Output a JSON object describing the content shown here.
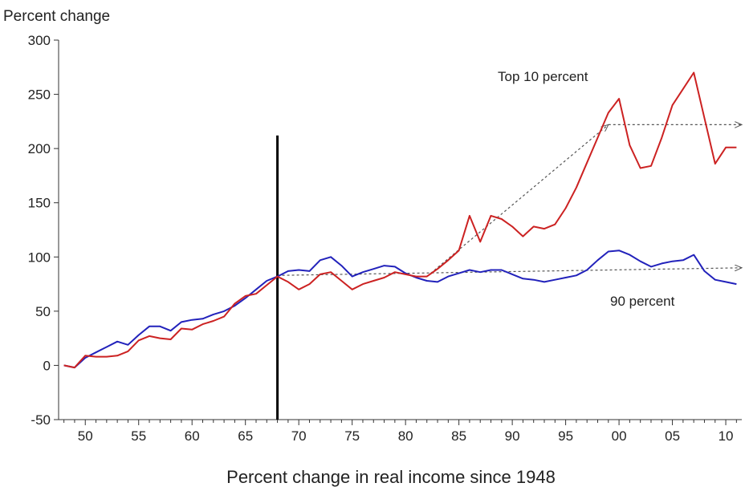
{
  "chart_data": {
    "type": "line",
    "ylabel": "Percent change",
    "xlabel": "Percent change in real income since 1948",
    "ylim": [
      -50,
      300
    ],
    "xlim": [
      1947.5,
      2011.5
    ],
    "y_ticks": [
      -50,
      0,
      50,
      100,
      150,
      200,
      250,
      300
    ],
    "x_ticks": [
      {
        "x": 1950,
        "label": "50"
      },
      {
        "x": 1955,
        "label": "55"
      },
      {
        "x": 1960,
        "label": "60"
      },
      {
        "x": 1965,
        "label": "65"
      },
      {
        "x": 1970,
        "label": "70"
      },
      {
        "x": 1975,
        "label": "75"
      },
      {
        "x": 1980,
        "label": "80"
      },
      {
        "x": 1985,
        "label": "85"
      },
      {
        "x": 1990,
        "label": "90"
      },
      {
        "x": 1995,
        "label": "95"
      },
      {
        "x": 2000,
        "label": "00"
      },
      {
        "x": 2005,
        "label": "05"
      },
      {
        "x": 2010,
        "label": "10"
      }
    ],
    "grid": false,
    "colors": {
      "top10": "#cc2222",
      "p90": "#2222bb",
      "vline": "#000000",
      "arrows": "#555555"
    },
    "x": [
      1948,
      1949,
      1950,
      1951,
      1952,
      1953,
      1954,
      1955,
      1956,
      1957,
      1958,
      1959,
      1960,
      1961,
      1962,
      1963,
      1964,
      1965,
      1966,
      1967,
      1968,
      1969,
      1970,
      1971,
      1972,
      1973,
      1974,
      1975,
      1976,
      1977,
      1978,
      1979,
      1980,
      1981,
      1982,
      1983,
      1984,
      1985,
      1986,
      1987,
      1988,
      1989,
      1990,
      1991,
      1992,
      1993,
      1994,
      1995,
      1996,
      1997,
      1998,
      1999,
      2000,
      2001,
      2002,
      2003,
      2004,
      2005,
      2006,
      2007,
      2008,
      2009,
      2010,
      2011
    ],
    "series": [
      {
        "name": "Top 10 percent",
        "color": "#cc2222",
        "values": [
          0,
          -2,
          9,
          8,
          8,
          9,
          13,
          23,
          27,
          25,
          24,
          34,
          33,
          38,
          41,
          45,
          57,
          64,
          66,
          74,
          82,
          77,
          70,
          75,
          84,
          86,
          78,
          70,
          75,
          78,
          81,
          86,
          84,
          82,
          82,
          89,
          97,
          106,
          138,
          114,
          138,
          135,
          128,
          119,
          128,
          126,
          130,
          145,
          164,
          187,
          210,
          233,
          246,
          203,
          182,
          184,
          210,
          240,
          255,
          270,
          228,
          186,
          201,
          201
        ]
      },
      {
        "name": "90 percent",
        "color": "#2222bb",
        "values": [
          0,
          -2,
          7,
          12,
          17,
          22,
          19,
          28,
          36,
          36,
          32,
          40,
          42,
          43,
          47,
          50,
          55,
          62,
          70,
          78,
          82,
          87,
          88,
          87,
          97,
          100,
          92,
          82,
          86,
          89,
          92,
          91,
          85,
          81,
          78,
          77,
          82,
          85,
          88,
          86,
          88,
          88,
          84,
          80,
          79,
          77,
          79,
          81,
          83,
          88,
          97,
          105,
          106,
          102,
          96,
          91,
          94,
          96,
          97,
          102,
          87,
          79,
          77,
          75
        ]
      }
    ],
    "annotations": {
      "top10_label": "Top 10 percent",
      "p90_label": "90 percent",
      "vline_x": 1968,
      "vline_top": 212
    },
    "trend_arrows": [
      {
        "from": [
          1982,
          82
        ],
        "to": [
          1999,
          222
        ]
      },
      {
        "from": [
          1999,
          222
        ],
        "to": [
          2011.5,
          222
        ]
      },
      {
        "from": [
          1968,
          83
        ],
        "to": [
          2011.5,
          90
        ]
      }
    ]
  }
}
